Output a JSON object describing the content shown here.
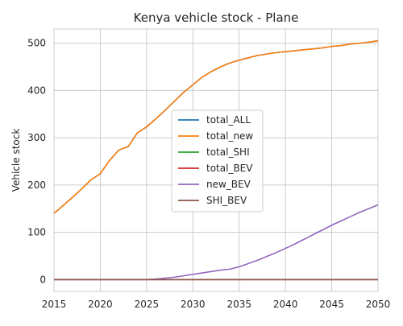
{
  "chart_data": {
    "type": "line",
    "title": "Kenya vehicle stock - Plane",
    "xlabel": "",
    "ylabel": "Vehicle stock",
    "xlim": [
      2015,
      2050
    ],
    "ylim": [
      -25,
      530
    ],
    "x_ticks": [
      2015,
      2020,
      2025,
      2030,
      2035,
      2040,
      2045,
      2050
    ],
    "y_ticks": [
      0,
      100,
      200,
      300,
      400,
      500
    ],
    "grid": true,
    "legend_position": "center",
    "series": [
      {
        "name": "total_ALL",
        "color": "#1f77b4",
        "x": [
          2015,
          2016,
          2017,
          2018,
          2019,
          2020,
          2021,
          2022,
          2023,
          2024,
          2025,
          2026,
          2027,
          2028,
          2029,
          2030,
          2031,
          2032,
          2033,
          2034,
          2035,
          2036,
          2037,
          2038,
          2039,
          2040,
          2041,
          2042,
          2043,
          2044,
          2045,
          2046,
          2047,
          2048,
          2049,
          2050
        ],
        "values": [
          140,
          157,
          174,
          192,
          211,
          224,
          252,
          274,
          281,
          310,
          323,
          340,
          358,
          377,
          396,
          412,
          428,
          440,
          450,
          458,
          464,
          469,
          474,
          477,
          480,
          482,
          484,
          486,
          488,
          490,
          493,
          495,
          498,
          500,
          502,
          505
        ]
      },
      {
        "name": "total_new",
        "color": "#ff7f0e",
        "x": [
          2015,
          2016,
          2017,
          2018,
          2019,
          2020,
          2021,
          2022,
          2023,
          2024,
          2025,
          2026,
          2027,
          2028,
          2029,
          2030,
          2031,
          2032,
          2033,
          2034,
          2035,
          2036,
          2037,
          2038,
          2039,
          2040,
          2041,
          2042,
          2043,
          2044,
          2045,
          2046,
          2047,
          2048,
          2049,
          2050
        ],
        "values": [
          140,
          157,
          174,
          192,
          211,
          224,
          252,
          274,
          281,
          310,
          323,
          340,
          358,
          377,
          396,
          412,
          428,
          440,
          450,
          458,
          464,
          469,
          474,
          477,
          480,
          482,
          484,
          486,
          488,
          490,
          493,
          495,
          498,
          500,
          502,
          505
        ]
      },
      {
        "name": "total_SHI",
        "color": "#2ca02c",
        "x": [
          2015,
          2050
        ],
        "values": [
          0,
          0
        ]
      },
      {
        "name": "total_BEV",
        "color": "#d62728",
        "x": [
          2015,
          2050
        ],
        "values": [
          0,
          0
        ]
      },
      {
        "name": "new_BEV",
        "color": "#9467bd",
        "x": [
          2015,
          2020,
          2025,
          2026,
          2027,
          2028,
          2029,
          2030,
          2031,
          2032,
          2033,
          2034,
          2035,
          2036,
          2037,
          2038,
          2039,
          2040,
          2041,
          2042,
          2043,
          2044,
          2045,
          2046,
          2047,
          2048,
          2049,
          2050
        ],
        "values": [
          0,
          0,
          0,
          1,
          3,
          5,
          8,
          11,
          14,
          17,
          20,
          22,
          27,
          34,
          41,
          49,
          57,
          66,
          75,
          85,
          95,
          105,
          115,
          124,
          133,
          142,
          150,
          158
        ]
      },
      {
        "name": "SHI_BEV",
        "color": "#8c564b",
        "x": [
          2015,
          2050
        ],
        "values": [
          0,
          0
        ]
      }
    ]
  }
}
